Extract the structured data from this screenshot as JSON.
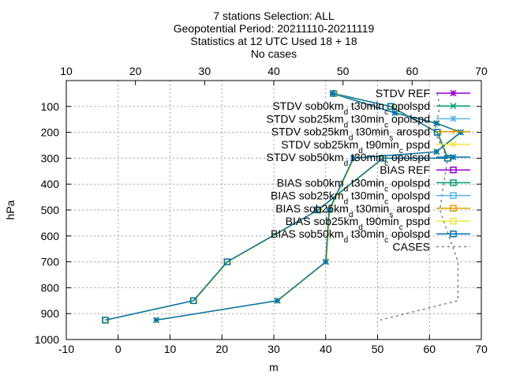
{
  "chart_data": {
    "type": "line",
    "title": [
      "7 stations Selection: ALL",
      "Geopotential  Period: 20211110-20211119",
      "Statistics at 12 UTC  Used 18 + 18",
      "No cases"
    ],
    "xlabel": "m",
    "ylabel": "hPa",
    "xlim": [
      -10,
      70
    ],
    "x2lim": [
      10,
      70
    ],
    "ylim": [
      1000,
      0
    ],
    "xticks": [
      "-10",
      "0",
      "10",
      "20",
      "30",
      "40",
      "50",
      "60",
      "70"
    ],
    "x2ticks": [
      "10",
      "20",
      "30",
      "40",
      "50",
      "60",
      "70"
    ],
    "yticks": [
      "100",
      "200",
      "300",
      "400",
      "500",
      "600",
      "700",
      "800",
      "900",
      "1000"
    ],
    "grid": true,
    "legend_position": "top-right",
    "series": [
      {
        "name": "STDV REF",
        "color": "#9400d3",
        "marker": "star",
        "axis": "x2",
        "dash": false,
        "points": []
      },
      {
        "name": "STDV sob0km_d t30min_c opolspd",
        "color": "#009e73",
        "marker": "x",
        "axis": "x2",
        "dash": false,
        "points": []
      },
      {
        "name": "STDV sob25km_d t30min_c opolspd",
        "color": "#56b4e9",
        "marker": "star",
        "axis": "x2",
        "dash": false,
        "points": []
      },
      {
        "name": "STDV sob25km_d t30min_s arospd",
        "color": "#e69f00",
        "marker": "plus",
        "axis": "x2",
        "dash": false,
        "points": []
      },
      {
        "name": "STDV sob25km_d t90min_c pspd",
        "color": "#f0e442",
        "marker": "x",
        "axis": "x2",
        "dash": false,
        "points": [
          [
            48.5,
            50
          ],
          [
            57.5,
            125
          ],
          [
            63.5,
            165
          ],
          [
            67,
            200
          ],
          [
            63.5,
            275
          ],
          [
            51.5,
            300
          ],
          [
            48,
            500
          ],
          [
            47.5,
            700
          ],
          [
            40.5,
            850
          ],
          [
            23,
            925
          ]
        ]
      },
      {
        "name": "STDV sob50km_d t30min_c opolspd",
        "color": "#0072b2",
        "marker": "star",
        "axis": "x2",
        "dash": false,
        "points": [
          [
            48.5,
            50
          ],
          [
            57.5,
            125
          ],
          [
            63.5,
            165
          ],
          [
            67,
            200
          ],
          [
            63.5,
            275
          ],
          [
            51.5,
            300
          ],
          [
            48,
            500
          ],
          [
            47.5,
            700
          ],
          [
            40.5,
            850
          ],
          [
            23,
            925
          ]
        ]
      },
      {
        "name": "BIAS REF",
        "color": "#9400d3",
        "marker": "square",
        "axis": "x",
        "dash": false,
        "points": []
      },
      {
        "name": "BIAS sob0km_d t30min_c opolspd",
        "color": "#009e73",
        "marker": "square",
        "axis": "x",
        "dash": false,
        "points": []
      },
      {
        "name": "BIAS sob25km_d t30min_c opolspd",
        "color": "#56b4e9",
        "marker": "square",
        "axis": "x",
        "dash": false,
        "points": []
      },
      {
        "name": "BIAS sob25km_d t30min_s arospd",
        "color": "#e69f00",
        "marker": "square",
        "axis": "x",
        "dash": false,
        "points": []
      },
      {
        "name": "BIAS sob25km_d t90min_c pspd",
        "color": "#f0e442",
        "marker": "square",
        "axis": "x",
        "dash": false,
        "points": [
          [
            41.5,
            50
          ],
          [
            52.5,
            100
          ],
          [
            61.5,
            200
          ],
          [
            63.5,
            300
          ],
          [
            51,
            300
          ],
          [
            38.5,
            500
          ],
          [
            21,
            700
          ],
          [
            14.5,
            850
          ],
          [
            -2.5,
            925
          ]
        ]
      },
      {
        "name": "BIAS sob50km_d t30min_c opolspd",
        "color": "#0072b2",
        "marker": "square",
        "axis": "x",
        "dash": false,
        "points": [
          [
            41.5,
            50
          ],
          [
            52.5,
            100
          ],
          [
            61.5,
            200
          ],
          [
            63.5,
            300
          ],
          [
            51,
            300
          ],
          [
            38.5,
            500
          ],
          [
            21,
            700
          ],
          [
            14.5,
            850
          ],
          [
            -2.5,
            925
          ]
        ]
      },
      {
        "name": "CASES",
        "color": "#808080",
        "marker": "none",
        "axis": "x",
        "dash": true,
        "points": [
          [
            61.5,
            50
          ],
          [
            62,
            100
          ],
          [
            61,
            200
          ],
          [
            63.5,
            300
          ],
          [
            62,
            500
          ],
          [
            65.5,
            700
          ],
          [
            65.5,
            850
          ],
          [
            50.5,
            925
          ]
        ]
      }
    ]
  }
}
